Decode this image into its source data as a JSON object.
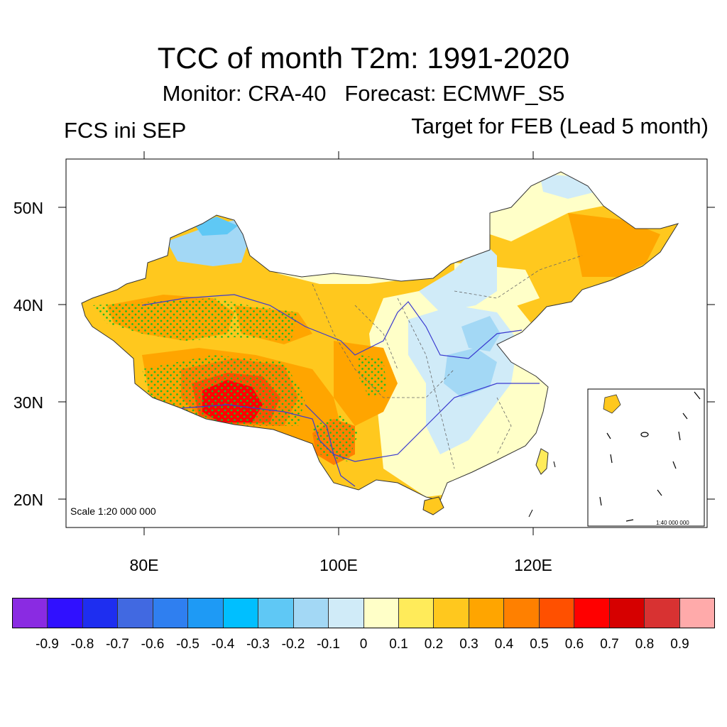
{
  "header": {
    "title": "TCC of month T2m: 1991-2020",
    "subtitle": "Monitor: CRA-40   Forecast: ECMWF_S5",
    "left_label": "FCS ini SEP",
    "right_label": "Target for FEB (Lead 5 month)"
  },
  "map": {
    "lat_ticks": [
      "50N",
      "40N",
      "30N",
      "20N"
    ],
    "lon_ticks": [
      "80E",
      "100E",
      "120E"
    ],
    "scale_text": "Scale 1:20 000 000",
    "inset_scale_text": "1:40 000 000",
    "stipple_color": "#22bb22"
  },
  "colorbar": {
    "colors": [
      "#8a2be2",
      "#3010ff",
      "#1e2ef0",
      "#4169e1",
      "#2f7ff0",
      "#1e9af5",
      "#00bfff",
      "#5fc8f5",
      "#a3d8f5",
      "#d0ebf8",
      "#ffffc8",
      "#ffeb5a",
      "#ffc81e",
      "#ffa500",
      "#ff8000",
      "#ff5000",
      "#ff0000",
      "#d60000",
      "#d83232",
      "#ffaaaa"
    ],
    "labels": [
      "-0.9",
      "-0.8",
      "-0.7",
      "-0.6",
      "-0.5",
      "-0.4",
      "-0.3",
      "-0.2",
      "-0.1",
      "0",
      "0.1",
      "0.2",
      "0.3",
      "0.4",
      "0.5",
      "0.6",
      "0.7",
      "0.8",
      "0.9"
    ]
  }
}
